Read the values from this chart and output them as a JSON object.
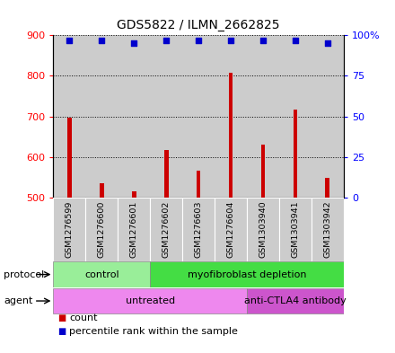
{
  "title": "GDS5822 / ILMN_2662825",
  "samples": [
    "GSM1276599",
    "GSM1276600",
    "GSM1276601",
    "GSM1276602",
    "GSM1276603",
    "GSM1276604",
    "GSM1303940",
    "GSM1303941",
    "GSM1303942"
  ],
  "counts": [
    697,
    535,
    515,
    617,
    566,
    808,
    630,
    718,
    549
  ],
  "percentiles": [
    97,
    97,
    95,
    97,
    97,
    97,
    97,
    97,
    95
  ],
  "ylim_left": [
    500,
    900
  ],
  "ylim_right": [
    0,
    100
  ],
  "yticks_left": [
    500,
    600,
    700,
    800,
    900
  ],
  "yticks_right": [
    0,
    25,
    50,
    75,
    100
  ],
  "ytick_labels_right": [
    "0",
    "25",
    "50",
    "75",
    "100%"
  ],
  "bar_color": "#cc0000",
  "dot_color": "#0000cc",
  "bar_bottom": 500,
  "protocol_groups": [
    {
      "label": "control",
      "start": 0,
      "end": 3,
      "color": "#99ee99"
    },
    {
      "label": "myofibroblast depletion",
      "start": 3,
      "end": 9,
      "color": "#44dd44"
    }
  ],
  "agent_groups": [
    {
      "label": "untreated",
      "start": 0,
      "end": 6,
      "color": "#ee88ee"
    },
    {
      "label": "anti-CTLA4 antibody",
      "start": 6,
      "end": 9,
      "color": "#cc55cc"
    }
  ],
  "legend_count_color": "#cc0000",
  "legend_dot_color": "#0000cc",
  "grid_color": "#000000",
  "sample_bg_color": "#cccccc",
  "background_color": "#ffffff"
}
